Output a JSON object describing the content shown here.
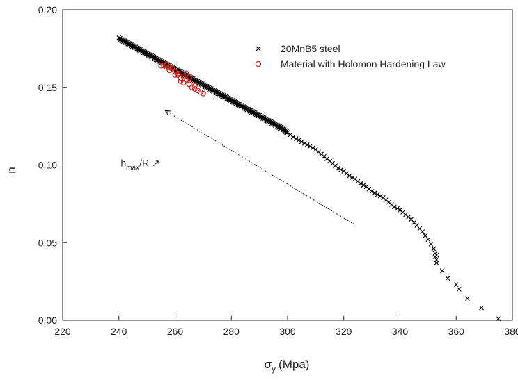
{
  "chart_data": {
    "type": "scatter",
    "title": "",
    "xlabel": "σy (Mpa)",
    "xlabel_parts": {
      "symbol": "σ",
      "subscript": "y",
      "unit": "(Mpa)"
    },
    "ylabel": "n",
    "xlim": [
      220,
      380
    ],
    "ylim": [
      0.0,
      0.2
    ],
    "xticks": [
      "220",
      "240",
      "260",
      "280",
      "300",
      "320",
      "340",
      "360",
      "380"
    ],
    "yticks": [
      "0.00",
      "0.05",
      "0.10",
      "0.15",
      "0.20"
    ],
    "grid": false,
    "legend_position": "top-right",
    "series": [
      {
        "name": "20MnB5 steel",
        "marker": "x",
        "color": "#000000",
        "x": [
          240,
          242,
          244,
          246,
          248,
          250,
          252,
          254,
          256,
          258,
          260,
          262,
          264,
          266,
          268,
          270,
          272,
          274,
          276,
          278,
          280,
          282,
          284,
          286,
          288,
          290,
          292,
          294,
          296,
          298,
          300,
          302,
          304,
          306,
          308,
          310,
          312,
          314,
          316,
          318,
          320,
          322,
          324,
          326,
          328,
          330,
          332,
          334,
          336,
          338,
          340,
          342,
          344,
          346,
          348,
          350,
          351,
          352,
          352.5,
          353,
          353,
          352.5,
          353,
          355,
          357,
          360,
          361,
          364,
          369,
          375
        ],
        "y": [
          0.182,
          0.18,
          0.178,
          0.176,
          0.174,
          0.172,
          0.17,
          0.168,
          0.166,
          0.164,
          0.162,
          0.16,
          0.158,
          0.156,
          0.154,
          0.152,
          0.15,
          0.148,
          0.146,
          0.144,
          0.142,
          0.14,
          0.138,
          0.136,
          0.134,
          0.132,
          0.13,
          0.128,
          0.126,
          0.124,
          0.121,
          0.118,
          0.116,
          0.114,
          0.112,
          0.11,
          0.107,
          0.104,
          0.101,
          0.098,
          0.096,
          0.093,
          0.091,
          0.088,
          0.086,
          0.083,
          0.081,
          0.079,
          0.076,
          0.073,
          0.071,
          0.068,
          0.065,
          0.061,
          0.057,
          0.052,
          0.049,
          0.046,
          0.043,
          0.042,
          0.039,
          0.041,
          0.037,
          0.032,
          0.027,
          0.023,
          0.02,
          0.014,
          0.008,
          0.001
        ]
      },
      {
        "name": "Material with Holomon Hardening Law",
        "marker": "o",
        "color": "#e0201b",
        "x": [
          255,
          256,
          257,
          258,
          259,
          260,
          261,
          262,
          263,
          264,
          265,
          266,
          267,
          268,
          269,
          270,
          258,
          260,
          262,
          264,
          257,
          259,
          261,
          263,
          265,
          267
        ],
        "y": [
          0.164,
          0.164,
          0.163,
          0.163,
          0.162,
          0.16,
          0.158,
          0.156,
          0.157,
          0.155,
          0.152,
          0.15,
          0.149,
          0.148,
          0.147,
          0.146,
          0.161,
          0.158,
          0.154,
          0.159,
          0.165,
          0.163,
          0.159,
          0.153,
          0.156,
          0.151
        ]
      }
    ],
    "annotations": [
      {
        "type": "arrow",
        "style": "dotted",
        "from": [
          323.5,
          0.062
        ],
        "to": [
          256.5,
          0.135
        ],
        "color": "#000000"
      },
      {
        "type": "text",
        "base": "h",
        "subscript": "max",
        "suffix": "/R",
        "arrow_glyph": "↗",
        "at": [
          257,
          0.099
        ]
      }
    ]
  }
}
